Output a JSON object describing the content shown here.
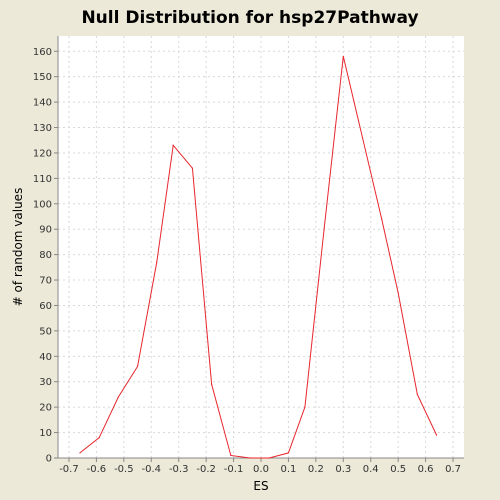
{
  "chart_data": {
    "type": "line",
    "title": "Null Distribution for hsp27Pathway",
    "xlabel": "ES",
    "ylabel": "# of random values",
    "xlim": [
      -0.74,
      0.74
    ],
    "ylim": [
      0,
      166
    ],
    "x_ticks": [
      "-0.7",
      "-0.6",
      "-0.5",
      "-0.4",
      "-0.3",
      "-0.2",
      "-0.1",
      "0.0",
      "0.1",
      "0.2",
      "0.3",
      "0.4",
      "0.5",
      "0.6",
      "0.7"
    ],
    "y_ticks": [
      "0",
      "10",
      "20",
      "30",
      "40",
      "50",
      "60",
      "70",
      "80",
      "90",
      "100",
      "110",
      "120",
      "130",
      "140",
      "150",
      "160"
    ],
    "grid": true,
    "legend": "none",
    "series": [
      {
        "color": "#e8262d",
        "x": [
          -0.66,
          -0.59,
          -0.52,
          -0.45,
          -0.38,
          -0.32,
          -0.25,
          -0.18,
          -0.11,
          -0.04,
          0.03,
          0.1,
          0.16,
          0.23,
          0.3,
          0.37,
          0.44,
          0.5,
          0.57,
          0.64
        ],
        "y": [
          2,
          8,
          24,
          36,
          77,
          123,
          114,
          29,
          1,
          0,
          0,
          2,
          20,
          90,
          158,
          126,
          94,
          65,
          25,
          9
        ]
      }
    ]
  }
}
